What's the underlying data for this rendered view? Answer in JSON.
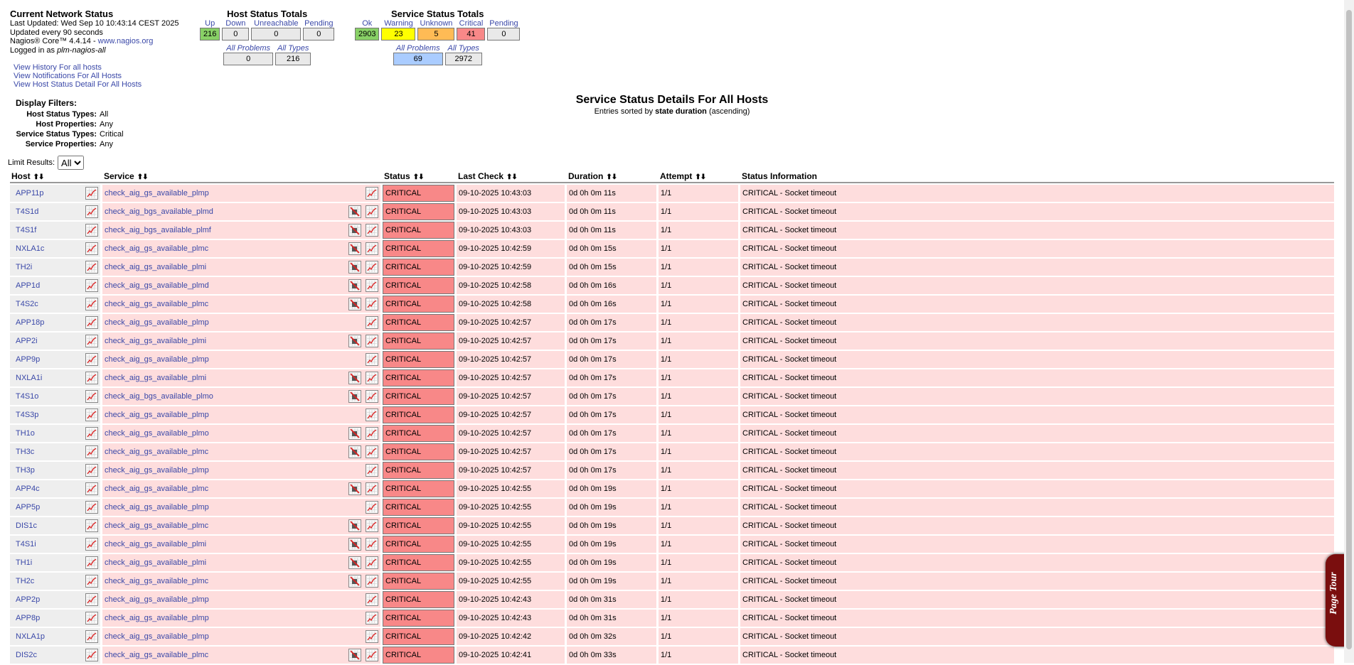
{
  "info": {
    "title": "Current Network Status",
    "last_updated": "Last Updated: Wed Sep 10 10:43:14 CEST 2025",
    "refresh": "Updated every 90 seconds",
    "version": "Nagios® Core™ 4.4.14 - ",
    "site_link": "www.nagios.org",
    "logged_in_prefix": "Logged in as ",
    "user": "plm-nagios-all"
  },
  "links": [
    "View History For all hosts",
    "View Notifications For All Hosts",
    "View Host Status Detail For All Hosts"
  ],
  "host_totals": {
    "title": "Host Status Totals",
    "labels": {
      "up": "Up",
      "down": "Down",
      "unreachable": "Unreachable",
      "pending": "Pending"
    },
    "values": {
      "up": "216",
      "down": "0",
      "unreachable": "0",
      "pending": "0"
    },
    "sum_labels": {
      "problems": "All Problems",
      "types": "All Types"
    },
    "sum_values": {
      "problems": "0",
      "types": "216"
    }
  },
  "service_totals": {
    "title": "Service Status Totals",
    "labels": {
      "ok": "Ok",
      "warning": "Warning",
      "unknown": "Unknown",
      "critical": "Critical",
      "pending": "Pending"
    },
    "values": {
      "ok": "2903",
      "warning": "23",
      "unknown": "5",
      "critical": "41",
      "pending": "0"
    },
    "sum_labels": {
      "problems": "All Problems",
      "types": "All Types"
    },
    "sum_values": {
      "problems": "69",
      "types": "2972"
    }
  },
  "filters": {
    "heading": "Display Filters:",
    "rows": [
      {
        "key": "Host Status Types:",
        "value": "All"
      },
      {
        "key": "Host Properties:",
        "value": "Any"
      },
      {
        "key": "Service Status Types:",
        "value": "Critical"
      },
      {
        "key": "Service Properties:",
        "value": "Any"
      }
    ]
  },
  "limit": {
    "label": "Limit Results:",
    "selected": "All"
  },
  "main_title": {
    "title": "Service Status Details For All Hosts",
    "sub_prefix": "Entries sorted by ",
    "sub_key": "state duration",
    "sub_suffix": " (ascending)"
  },
  "table": {
    "headers": {
      "host": "Host",
      "service": "Service",
      "status": "Status",
      "last_check": "Last Check",
      "duration": "Duration",
      "attempt": "Attempt",
      "info": "Status Information"
    },
    "sort_glyph": "⬆⬇",
    "rows": [
      {
        "host": "APP11p",
        "service": "check_aig_gs_available_plmp",
        "nonotif": false,
        "status": "CRITICAL",
        "last_check": "09-10-2025 10:43:03",
        "duration": "0d 0h 0m 11s",
        "attempt": "1/1",
        "info": "CRITICAL - Socket timeout"
      },
      {
        "host": "T4S1d",
        "service": "check_aig_bgs_available_plmd",
        "nonotif": true,
        "status": "CRITICAL",
        "last_check": "09-10-2025 10:43:03",
        "duration": "0d 0h 0m 11s",
        "attempt": "1/1",
        "info": "CRITICAL - Socket timeout"
      },
      {
        "host": "T4S1f",
        "service": "check_aig_bgs_available_plmf",
        "nonotif": true,
        "status": "CRITICAL",
        "last_check": "09-10-2025 10:43:03",
        "duration": "0d 0h 0m 11s",
        "attempt": "1/1",
        "info": "CRITICAL - Socket timeout"
      },
      {
        "host": "NXLA1c",
        "service": "check_aig_gs_available_plmc",
        "nonotif": true,
        "status": "CRITICAL",
        "last_check": "09-10-2025 10:42:59",
        "duration": "0d 0h 0m 15s",
        "attempt": "1/1",
        "info": "CRITICAL - Socket timeout"
      },
      {
        "host": "TH2i",
        "service": "check_aig_gs_available_plmi",
        "nonotif": true,
        "status": "CRITICAL",
        "last_check": "09-10-2025 10:42:59",
        "duration": "0d 0h 0m 15s",
        "attempt": "1/1",
        "info": "CRITICAL - Socket timeout"
      },
      {
        "host": "APP1d",
        "service": "check_aig_gs_available_plmd",
        "nonotif": true,
        "status": "CRITICAL",
        "last_check": "09-10-2025 10:42:58",
        "duration": "0d 0h 0m 16s",
        "attempt": "1/1",
        "info": "CRITICAL - Socket timeout"
      },
      {
        "host": "T4S2c",
        "service": "check_aig_gs_available_plmc",
        "nonotif": true,
        "status": "CRITICAL",
        "last_check": "09-10-2025 10:42:58",
        "duration": "0d 0h 0m 16s",
        "attempt": "1/1",
        "info": "CRITICAL - Socket timeout"
      },
      {
        "host": "APP18p",
        "service": "check_aig_gs_available_plmp",
        "nonotif": false,
        "status": "CRITICAL",
        "last_check": "09-10-2025 10:42:57",
        "duration": "0d 0h 0m 17s",
        "attempt": "1/1",
        "info": "CRITICAL - Socket timeout"
      },
      {
        "host": "APP2i",
        "service": "check_aig_gs_available_plmi",
        "nonotif": true,
        "status": "CRITICAL",
        "last_check": "09-10-2025 10:42:57",
        "duration": "0d 0h 0m 17s",
        "attempt": "1/1",
        "info": "CRITICAL - Socket timeout"
      },
      {
        "host": "APP9p",
        "service": "check_aig_gs_available_plmp",
        "nonotif": false,
        "status": "CRITICAL",
        "last_check": "09-10-2025 10:42:57",
        "duration": "0d 0h 0m 17s",
        "attempt": "1/1",
        "info": "CRITICAL - Socket timeout"
      },
      {
        "host": "NXLA1i",
        "service": "check_aig_gs_available_plmi",
        "nonotif": true,
        "status": "CRITICAL",
        "last_check": "09-10-2025 10:42:57",
        "duration": "0d 0h 0m 17s",
        "attempt": "1/1",
        "info": "CRITICAL - Socket timeout"
      },
      {
        "host": "T4S1o",
        "service": "check_aig_bgs_available_plmo",
        "nonotif": true,
        "status": "CRITICAL",
        "last_check": "09-10-2025 10:42:57",
        "duration": "0d 0h 0m 17s",
        "attempt": "1/1",
        "info": "CRITICAL - Socket timeout"
      },
      {
        "host": "T4S3p",
        "service": "check_aig_gs_available_plmp",
        "nonotif": false,
        "status": "CRITICAL",
        "last_check": "09-10-2025 10:42:57",
        "duration": "0d 0h 0m 17s",
        "attempt": "1/1",
        "info": "CRITICAL - Socket timeout"
      },
      {
        "host": "TH1o",
        "service": "check_aig_gs_available_plmo",
        "nonotif": true,
        "status": "CRITICAL",
        "last_check": "09-10-2025 10:42:57",
        "duration": "0d 0h 0m 17s",
        "attempt": "1/1",
        "info": "CRITICAL - Socket timeout"
      },
      {
        "host": "TH3c",
        "service": "check_aig_gs_available_plmc",
        "nonotif": true,
        "status": "CRITICAL",
        "last_check": "09-10-2025 10:42:57",
        "duration": "0d 0h 0m 17s",
        "attempt": "1/1",
        "info": "CRITICAL - Socket timeout"
      },
      {
        "host": "TH3p",
        "service": "check_aig_gs_available_plmp",
        "nonotif": false,
        "status": "CRITICAL",
        "last_check": "09-10-2025 10:42:57",
        "duration": "0d 0h 0m 17s",
        "attempt": "1/1",
        "info": "CRITICAL - Socket timeout"
      },
      {
        "host": "APP4c",
        "service": "check_aig_gs_available_plmc",
        "nonotif": true,
        "status": "CRITICAL",
        "last_check": "09-10-2025 10:42:55",
        "duration": "0d 0h 0m 19s",
        "attempt": "1/1",
        "info": "CRITICAL - Socket timeout"
      },
      {
        "host": "APP5p",
        "service": "check_aig_gs_available_plmp",
        "nonotif": false,
        "status": "CRITICAL",
        "last_check": "09-10-2025 10:42:55",
        "duration": "0d 0h 0m 19s",
        "attempt": "1/1",
        "info": "CRITICAL - Socket timeout"
      },
      {
        "host": "DIS1c",
        "service": "check_aig_gs_available_plmc",
        "nonotif": true,
        "status": "CRITICAL",
        "last_check": "09-10-2025 10:42:55",
        "duration": "0d 0h 0m 19s",
        "attempt": "1/1",
        "info": "CRITICAL - Socket timeout"
      },
      {
        "host": "T4S1i",
        "service": "check_aig_gs_available_plmi",
        "nonotif": true,
        "status": "CRITICAL",
        "last_check": "09-10-2025 10:42:55",
        "duration": "0d 0h 0m 19s",
        "attempt": "1/1",
        "info": "CRITICAL - Socket timeout"
      },
      {
        "host": "TH1i",
        "service": "check_aig_gs_available_plmi",
        "nonotif": true,
        "status": "CRITICAL",
        "last_check": "09-10-2025 10:42:55",
        "duration": "0d 0h 0m 19s",
        "attempt": "1/1",
        "info": "CRITICAL - Socket timeout"
      },
      {
        "host": "TH2c",
        "service": "check_aig_gs_available_plmc",
        "nonotif": true,
        "status": "CRITICAL",
        "last_check": "09-10-2025 10:42:55",
        "duration": "0d 0h 0m 19s",
        "attempt": "1/1",
        "info": "CRITICAL - Socket timeout"
      },
      {
        "host": "APP2p",
        "service": "check_aig_gs_available_plmp",
        "nonotif": false,
        "status": "CRITICAL",
        "last_check": "09-10-2025 10:42:43",
        "duration": "0d 0h 0m 31s",
        "attempt": "1/1",
        "info": "CRITICAL - Socket timeout"
      },
      {
        "host": "APP8p",
        "service": "check_aig_gs_available_plmp",
        "nonotif": false,
        "status": "CRITICAL",
        "last_check": "09-10-2025 10:42:43",
        "duration": "0d 0h 0m 31s",
        "attempt": "1/1",
        "info": "CRITICAL - Socket timeout"
      },
      {
        "host": "NXLA1p",
        "service": "check_aig_gs_available_plmp",
        "nonotif": false,
        "status": "CRITICAL",
        "last_check": "09-10-2025 10:42:42",
        "duration": "0d 0h 0m 32s",
        "attempt": "1/1",
        "info": "CRITICAL - Socket timeout"
      },
      {
        "host": "DIS2c",
        "service": "check_aig_gs_available_plmc",
        "nonotif": true,
        "status": "CRITICAL",
        "last_check": "09-10-2025 10:42:41",
        "duration": "0d 0h 0m 33s",
        "attempt": "1/1",
        "info": "CRITICAL - Socket timeout"
      }
    ]
  },
  "page_tour": "Page Tour",
  "colors": {
    "critical": "#f88888",
    "row_bg": "#fedddd",
    "ok": "#88d066",
    "warning": "#ffff00",
    "unknown": "#ffbb55",
    "link": "#3a48a8",
    "tour": "#7a0e0e"
  }
}
